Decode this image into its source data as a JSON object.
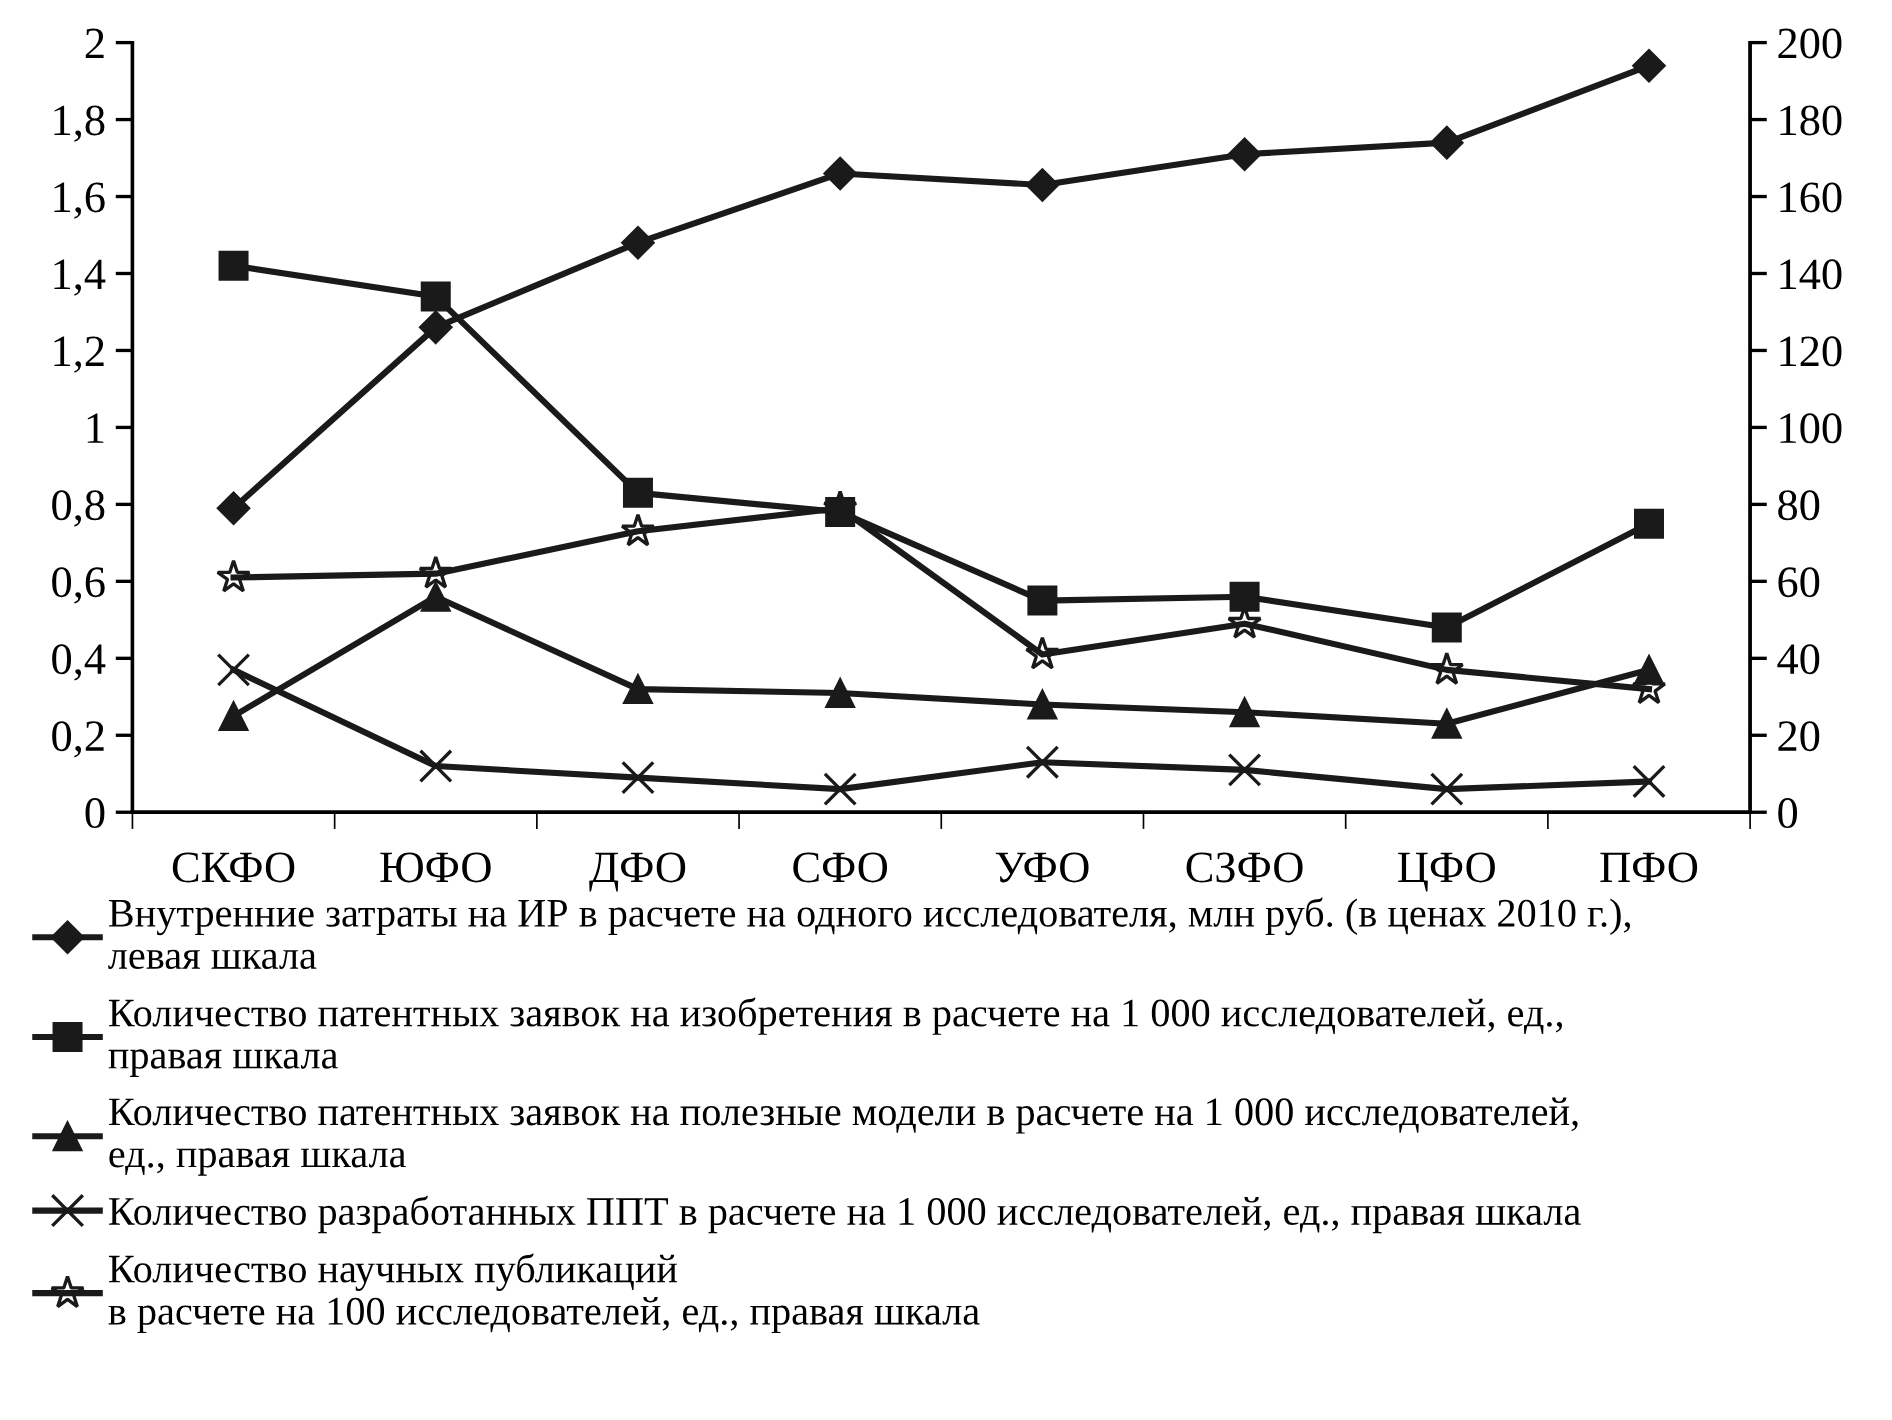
{
  "chart_data": {
    "type": "line",
    "categories": [
      "СКФО",
      "ЮФО",
      "ДФО",
      "СФО",
      "УФО",
      "СЗФО",
      "ЦФО",
      "ПФО"
    ],
    "ylim": [
      0,
      2
    ],
    "yticks": [
      0,
      {
        "value": 0.2,
        "label": "0,2"
      },
      {
        "value": 0.4,
        "label": "0,4"
      },
      {
        "value": 0.6,
        "label": "0,6"
      },
      {
        "value": 0.8,
        "label": "0,8"
      },
      1,
      {
        "value": 1.2,
        "label": "1,2"
      },
      {
        "value": 1.4,
        "label": "1,4"
      },
      {
        "value": 1.6,
        "label": "1,6"
      },
      {
        "value": 1.8,
        "label": "1,8"
      },
      2
    ],
    "y2lim": [
      0,
      200
    ],
    "y2ticks": [
      0,
      20,
      40,
      60,
      80,
      100,
      120,
      140,
      160,
      180,
      200
    ],
    "grid": false,
    "legend": "bottom",
    "line_style": "solid",
    "series": [
      {
        "name": "Внутренние затраты на ИР в расчете на одного исследователя, млн руб. (в ценах 2010 г.),\nлевая шкала",
        "color": "#1a1a1a",
        "marker": "diamond",
        "values": [
          0.79,
          1.26,
          1.48,
          1.66,
          1.63,
          1.71,
          1.74,
          1.94
        ]
      },
      {
        "name": "Количество патентных заявок на изобретения в расчете на 1 000 исследователей, ед.,\nправая шкала",
        "color": "#1a1a1a",
        "marker": "square",
        "axis": "y2",
        "values": [
          142,
          134,
          83,
          78,
          55,
          56,
          48,
          75
        ]
      },
      {
        "name": "Количество патентных заявок на полезные модели в расчете на 1 000 исследователей,\nед., правая шкала",
        "color": "#1a1a1a",
        "marker": "triangle",
        "axis": "y2",
        "values": [
          25,
          56,
          32,
          31,
          28,
          26,
          23,
          37
        ]
      },
      {
        "name": "Количество разработанных ППТ в расчете на 1 000 исследователей, ед., правая шкала",
        "color": "#1a1a1a",
        "marker": "cross",
        "axis": "y2",
        "values": [
          37,
          12,
          9,
          6,
          13,
          11,
          6,
          8
        ]
      },
      {
        "name": "Количество научных публикаций\nв расчете на 100 исследователей, ед., правая шкала",
        "color": "#1a1a1a",
        "marker": "star",
        "axis": "y2",
        "values": [
          61,
          62,
          73,
          79,
          41,
          49,
          37,
          32
        ]
      }
    ]
  }
}
